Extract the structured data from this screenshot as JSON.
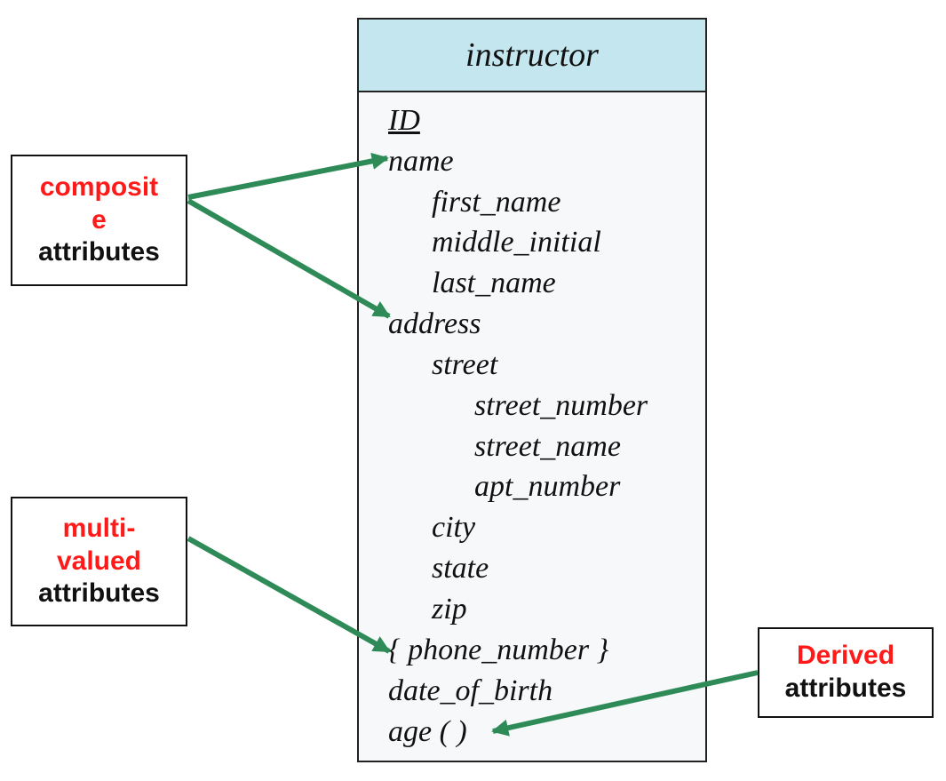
{
  "entity": {
    "title": "instructor",
    "attributes": [
      {
        "text": "ID",
        "key": true
      },
      {
        "text": "name"
      },
      {
        "text": "first_name"
      },
      {
        "text": "middle_initial"
      },
      {
        "text": "last_name"
      },
      {
        "text": "address"
      },
      {
        "text": "street"
      },
      {
        "text": "street_number"
      },
      {
        "text": "street_name"
      },
      {
        "text": "apt_number"
      },
      {
        "text": "city"
      },
      {
        "text": "state"
      },
      {
        "text": "zip"
      },
      {
        "text": "{ phone_number }"
      },
      {
        "text": "date_of_birth"
      },
      {
        "text": "age ( )"
      }
    ]
  },
  "callouts": {
    "composite": {
      "line1": "composit",
      "line2": "e",
      "line3": "attributes"
    },
    "multivalued": {
      "line1": "multi-",
      "line2": "valued",
      "line3": "attributes"
    },
    "derived": {
      "line1": "Derived",
      "line2": "attributes"
    }
  },
  "colors": {
    "header_fill": "#c3e6ef",
    "arrow": "#2e8b57",
    "callout_highlight": "#ff1a1a"
  }
}
